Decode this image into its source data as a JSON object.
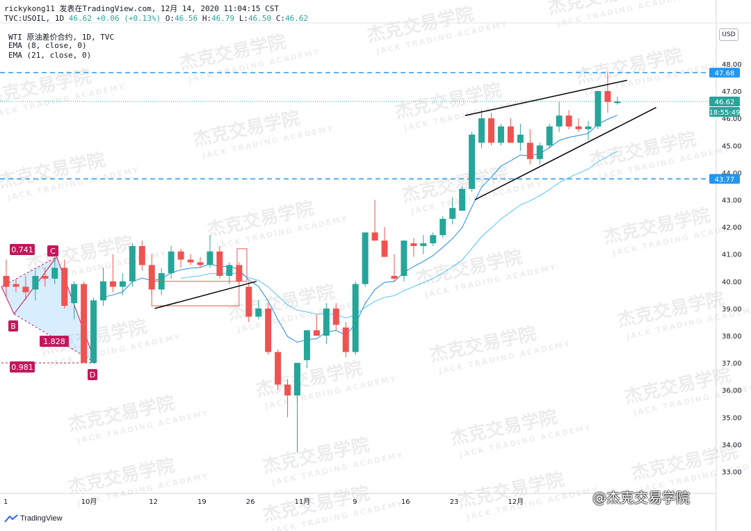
{
  "header": {
    "line1": "rickykong11 发表在TradingView.com, 12月 14, 2020 11:04:15 CST",
    "symbol": "TVC:USOIL, 1D",
    "last": "46.62",
    "change": "+0.06 (+0.13%)",
    "o_label": "O:",
    "o": "46.56",
    "h_label": "H:",
    "h": "46.79",
    "l_label": "L:",
    "l": "46.50",
    "c_label": "C:",
    "c": "46.62"
  },
  "indicators": {
    "instrument": "WTI 原油差价合约, 1D, TVC",
    "ema8": "EMA (8, close, 0)",
    "ema21": "EMA (21, close, 0)"
  },
  "price_tags": {
    "currency": "USD",
    "upper_level": "47.68",
    "last_price": "46.62",
    "countdown": "18:55:49",
    "lower_level": "43.77"
  },
  "pattern_labels": {
    "c": "C",
    "b": "B",
    "d": "D",
    "ratio_top": "0.741",
    "ratio_mid": "1.828",
    "ratio_bottom": "0.981"
  },
  "watermark": {
    "cn": "杰克交易学院",
    "en": "JACK TRADING ACADEMY"
  },
  "footer": {
    "logo": "TradingView",
    "weibo": "@杰克交易学院"
  },
  "colors": {
    "up": "#26a69a",
    "down": "#ef5350",
    "ema8": "#1e88e5",
    "ema21": "#4fc3f7",
    "level_line": "#2196f3",
    "pattern": "#c2185b"
  },
  "chart_data": {
    "type": "candlestick",
    "y_ticks": [
      "48.00",
      "47.00",
      "46.00",
      "45.00",
      "44.00",
      "43.00",
      "42.00",
      "41.00",
      "40.00",
      "39.00",
      "38.00",
      "37.00",
      "36.00",
      "35.00",
      "34.00",
      "33.00"
    ],
    "ylim": [
      32.5,
      49.0
    ],
    "x_ticks": [
      "1",
      "10月",
      "12",
      "19",
      "26",
      "11月",
      "9",
      "16",
      "23",
      "12月"
    ],
    "horizontal_levels": [
      47.68,
      43.77
    ],
    "last_price": 46.62,
    "candles": [
      {
        "o": 40.2,
        "h": 40.8,
        "l": 39.4,
        "c": 39.8
      },
      {
        "o": 39.9,
        "h": 40.1,
        "l": 39.6,
        "c": 39.8
      },
      {
        "o": 39.8,
        "h": 40.2,
        "l": 39.3,
        "c": 39.6
      },
      {
        "o": 39.7,
        "h": 40.4,
        "l": 39.3,
        "c": 40.2
      },
      {
        "o": 40.2,
        "h": 40.5,
        "l": 39.8,
        "c": 40.1
      },
      {
        "o": 40.1,
        "h": 40.9,
        "l": 39.9,
        "c": 40.5
      },
      {
        "o": 40.5,
        "h": 40.8,
        "l": 39.0,
        "c": 39.1
      },
      {
        "o": 39.2,
        "h": 40.0,
        "l": 38.6,
        "c": 39.9
      },
      {
        "o": 39.9,
        "h": 40.0,
        "l": 37.0,
        "c": 37.0
      },
      {
        "o": 37.0,
        "h": 39.4,
        "l": 37.0,
        "c": 39.3
      },
      {
        "o": 39.3,
        "h": 40.5,
        "l": 39.1,
        "c": 40.0
      },
      {
        "o": 40.0,
        "h": 41.0,
        "l": 39.6,
        "c": 39.8
      },
      {
        "o": 39.8,
        "h": 40.3,
        "l": 39.5,
        "c": 40.0
      },
      {
        "o": 40.0,
        "h": 41.4,
        "l": 39.8,
        "c": 41.3
      },
      {
        "o": 41.3,
        "h": 41.5,
        "l": 40.4,
        "c": 40.6
      },
      {
        "o": 40.6,
        "h": 41.0,
        "l": 39.5,
        "c": 39.7
      },
      {
        "o": 39.7,
        "h": 40.5,
        "l": 39.5,
        "c": 40.3
      },
      {
        "o": 40.3,
        "h": 41.3,
        "l": 40.1,
        "c": 41.1
      },
      {
        "o": 41.1,
        "h": 41.2,
        "l": 40.5,
        "c": 40.8
      },
      {
        "o": 40.8,
        "h": 41.0,
        "l": 40.6,
        "c": 40.7
      },
      {
        "o": 40.7,
        "h": 40.9,
        "l": 40.5,
        "c": 40.6
      },
      {
        "o": 40.6,
        "h": 41.7,
        "l": 40.5,
        "c": 41.1
      },
      {
        "o": 41.1,
        "h": 41.3,
        "l": 40.1,
        "c": 40.2
      },
      {
        "o": 40.2,
        "h": 40.7,
        "l": 39.9,
        "c": 40.6
      },
      {
        "o": 40.6,
        "h": 40.7,
        "l": 39.9,
        "c": 40.0
      },
      {
        "o": 39.8,
        "h": 40.0,
        "l": 38.5,
        "c": 38.7
      },
      {
        "o": 38.7,
        "h": 39.3,
        "l": 38.6,
        "c": 39.0
      },
      {
        "o": 39.0,
        "h": 39.2,
        "l": 37.3,
        "c": 37.4
      },
      {
        "o": 37.4,
        "h": 37.5,
        "l": 36.0,
        "c": 36.2
      },
      {
        "o": 36.2,
        "h": 36.4,
        "l": 35.0,
        "c": 35.8
      },
      {
        "o": 35.8,
        "h": 37.0,
        "l": 33.7,
        "c": 37.0
      },
      {
        "o": 37.1,
        "h": 38.2,
        "l": 36.8,
        "c": 38.2
      },
      {
        "o": 38.2,
        "h": 38.8,
        "l": 38.0,
        "c": 38.0
      },
      {
        "o": 38.0,
        "h": 39.2,
        "l": 37.7,
        "c": 39.0
      },
      {
        "o": 39.0,
        "h": 39.2,
        "l": 38.2,
        "c": 38.4
      },
      {
        "o": 38.3,
        "h": 38.5,
        "l": 37.2,
        "c": 37.4
      },
      {
        "o": 37.4,
        "h": 40.0,
        "l": 37.3,
        "c": 39.9
      },
      {
        "o": 39.9,
        "h": 41.8,
        "l": 39.8,
        "c": 41.8
      },
      {
        "o": 41.8,
        "h": 43.0,
        "l": 41.5,
        "c": 41.5
      },
      {
        "o": 41.5,
        "h": 42.0,
        "l": 40.9,
        "c": 40.9
      },
      {
        "o": 40.2,
        "h": 41.0,
        "l": 40.0,
        "c": 40.1
      },
      {
        "o": 40.2,
        "h": 41.5,
        "l": 40.0,
        "c": 41.5
      },
      {
        "o": 41.4,
        "h": 41.6,
        "l": 40.9,
        "c": 41.3
      },
      {
        "o": 41.3,
        "h": 41.7,
        "l": 41.0,
        "c": 41.4
      },
      {
        "o": 41.4,
        "h": 41.8,
        "l": 41.3,
        "c": 41.7
      },
      {
        "o": 41.7,
        "h": 42.4,
        "l": 41.6,
        "c": 42.3
      },
      {
        "o": 42.3,
        "h": 43.1,
        "l": 42.1,
        "c": 42.7
      },
      {
        "o": 42.6,
        "h": 43.5,
        "l": 42.6,
        "c": 43.4
      },
      {
        "o": 43.4,
        "h": 45.5,
        "l": 43.3,
        "c": 45.4
      },
      {
        "o": 45.1,
        "h": 46.3,
        "l": 44.9,
        "c": 46.0
      },
      {
        "o": 46.0,
        "h": 46.2,
        "l": 45.0,
        "c": 45.1
      },
      {
        "o": 45.1,
        "h": 45.8,
        "l": 45.0,
        "c": 45.7
      },
      {
        "o": 45.7,
        "h": 46.0,
        "l": 45.1,
        "c": 45.1
      },
      {
        "o": 45.1,
        "h": 45.8,
        "l": 44.8,
        "c": 45.4
      },
      {
        "o": 45.1,
        "h": 45.6,
        "l": 44.3,
        "c": 44.5
      },
      {
        "o": 44.5,
        "h": 45.1,
        "l": 44.3,
        "c": 45.0
      },
      {
        "o": 45.0,
        "h": 45.8,
        "l": 44.9,
        "c": 45.7
      },
      {
        "o": 45.7,
        "h": 46.6,
        "l": 45.5,
        "c": 46.1
      },
      {
        "o": 46.1,
        "h": 46.3,
        "l": 45.6,
        "c": 45.7
      },
      {
        "o": 45.7,
        "h": 46.0,
        "l": 45.5,
        "c": 45.6
      },
      {
        "o": 45.6,
        "h": 45.9,
        "l": 45.2,
        "c": 45.7
      },
      {
        "o": 45.7,
        "h": 47.0,
        "l": 45.6,
        "c": 47.0
      },
      {
        "o": 47.0,
        "h": 47.7,
        "l": 46.2,
        "c": 46.6
      },
      {
        "o": 46.56,
        "h": 46.79,
        "l": 46.5,
        "c": 46.62
      }
    ]
  }
}
